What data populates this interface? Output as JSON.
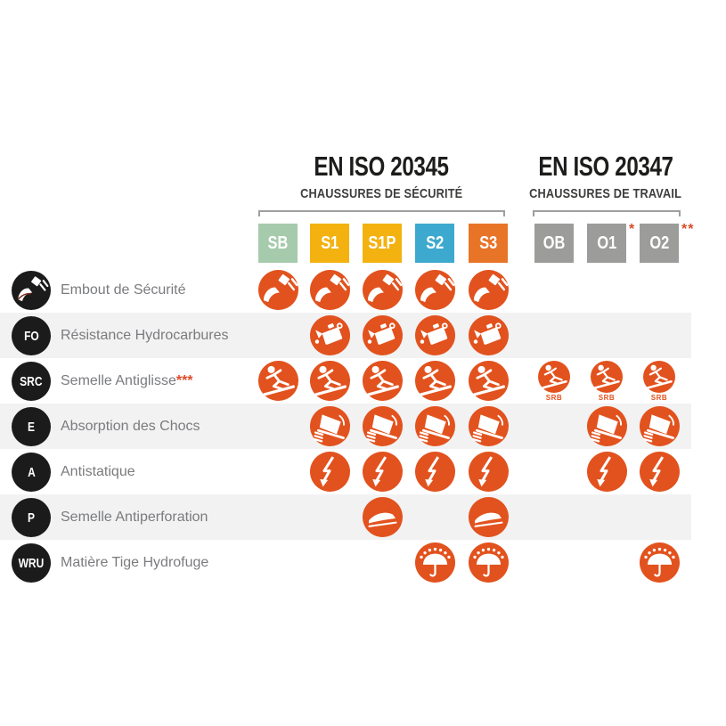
{
  "infographic": {
    "standards": [
      {
        "title": "EN ISO 20345",
        "subtitle": "CHAUSSURES DE SÉCURITÉ"
      },
      {
        "title": "EN ISO 20347",
        "subtitle": "CHAUSSURES DE TRAVAIL"
      }
    ]
  },
  "columns": [
    {
      "label": "SB",
      "color": "#a6cbac",
      "asterisks": "",
      "standard": "EN ISO 20345"
    },
    {
      "label": "S1",
      "color": "#f3b210",
      "asterisks": "",
      "standard": "EN ISO 20345"
    },
    {
      "label": "S1P",
      "color": "#f3b210",
      "asterisks": "",
      "standard": "EN ISO 20345"
    },
    {
      "label": "S2",
      "color": "#3ea9ce",
      "asterisks": "",
      "standard": "EN ISO 20345"
    },
    {
      "label": "S3",
      "color": "#e87428",
      "asterisks": "",
      "standard": "EN ISO 20345"
    },
    {
      "label": "OB",
      "color": "#9c9c9b",
      "asterisks": "",
      "standard": "EN ISO 20347"
    },
    {
      "label": "O1",
      "color": "#9c9c9b",
      "asterisks": "*",
      "standard": "EN ISO 20347"
    },
    {
      "label": "O2",
      "color": "#9c9c9b",
      "asterisks": "**",
      "standard": "EN ISO 20347"
    }
  ],
  "rows": [
    {
      "badge": "",
      "label": "Embout de Sécurité",
      "asterisks": "",
      "icon": "toe-cap",
      "cells": [
        1,
        1,
        1,
        1,
        1,
        0,
        0,
        0
      ],
      "sub_labels": [
        "",
        "",
        "",
        "",
        "",
        "",
        "",
        ""
      ]
    },
    {
      "badge": "FO",
      "label": "Résistance Hydrocarbures",
      "asterisks": "",
      "icon": "oil-can",
      "cells": [
        0,
        1,
        1,
        1,
        1,
        0,
        0,
        0
      ],
      "sub_labels": [
        "",
        "",
        "",
        "",
        "",
        "",
        "",
        ""
      ]
    },
    {
      "badge": "SRC",
      "label": "Semelle Antiglisse",
      "asterisks": "***",
      "icon": "slip",
      "cells": [
        1,
        1,
        1,
        1,
        1,
        1,
        1,
        1
      ],
      "sub_labels": [
        "",
        "",
        "",
        "",
        "",
        "SRB",
        "SRB",
        "SRB"
      ]
    },
    {
      "badge": "E",
      "label": "Absorption des Chocs",
      "asterisks": "",
      "icon": "heel-shock",
      "cells": [
        0,
        1,
        1,
        1,
        1,
        0,
        1,
        1
      ],
      "sub_labels": [
        "",
        "",
        "",
        "",
        "",
        "",
        "",
        ""
      ]
    },
    {
      "badge": "A",
      "label": "Antistatique",
      "asterisks": "",
      "icon": "lightning",
      "cells": [
        0,
        1,
        1,
        1,
        1,
        0,
        1,
        1
      ],
      "sub_labels": [
        "",
        "",
        "",
        "",
        "",
        "",
        "",
        ""
      ]
    },
    {
      "badge": "P",
      "label": "Semelle Antiperforation",
      "asterisks": "",
      "icon": "sole",
      "cells": [
        0,
        0,
        1,
        0,
        1,
        0,
        0,
        0
      ],
      "sub_labels": [
        "",
        "",
        "",
        "",
        "",
        "",
        "",
        ""
      ]
    },
    {
      "badge": "WRU",
      "label": "Matière Tige Hydrofuge",
      "asterisks": "",
      "icon": "umbrella",
      "cells": [
        0,
        0,
        0,
        1,
        1,
        0,
        0,
        1
      ],
      "sub_labels": [
        "",
        "",
        "",
        "",
        "",
        "",
        "",
        ""
      ]
    }
  ],
  "colors": {
    "icon_circle_orange": "#e2521e",
    "stripe_gray": "#f2f2f2",
    "badge_black": "#1b1b1b",
    "label_gray": "#7a7b7e",
    "title_black": "#1d1d1b",
    "subtitle_gray": "#3d3d3c",
    "asterisk_red": "#dc4b29",
    "chip_green": "#a6cbac",
    "chip_yellow": "#f3b210",
    "chip_blue": "#3ea9ce",
    "chip_orange": "#e87428",
    "chip_gray": "#9c9c9b",
    "bracket_gray": "#9f9f9f"
  }
}
